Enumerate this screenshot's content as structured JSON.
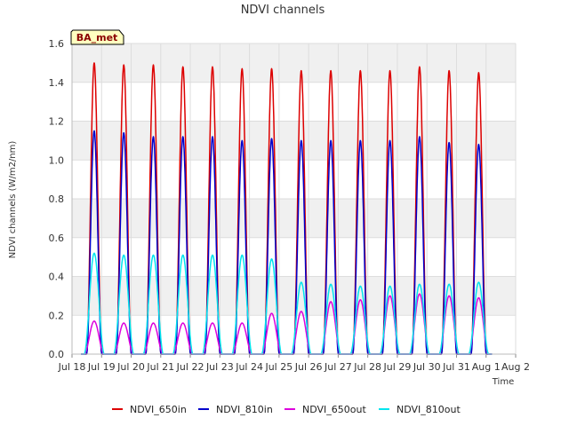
{
  "chart_data": {
    "type": "line",
    "title": "NDVI channels",
    "xlabel": "Time",
    "ylabel": "NDVI channels (W/m2/nm)",
    "badge": "BA_met",
    "ylim": [
      0,
      1.6
    ],
    "yticks": [
      0.0,
      0.2,
      0.4,
      0.6,
      0.8,
      1.0,
      1.2,
      1.4,
      1.6
    ],
    "ytick_labels": [
      "0.0",
      "0.2",
      "0.4",
      "0.6",
      "0.8",
      "1.0",
      "1.2",
      "1.4",
      "1.6"
    ],
    "xlim": [
      0,
      15
    ],
    "xtick_labels": [
      "Jul 18",
      "Jul 19",
      "Jul 20",
      "Jul 21",
      "Jul 22",
      "Jul 23",
      "Jul 24",
      "Jul 25",
      "Jul 26",
      "Jul 27",
      "Jul 28",
      "Jul 29",
      "Jul 30",
      "Jul 31",
      "Aug 1",
      "Aug 2"
    ],
    "data_start_day": 0.3,
    "data_end_day": 14.2,
    "peak_offset": 0.75,
    "series": [
      {
        "name": "NDVI_650in",
        "color": "#dd0000",
        "width": 0.26,
        "peaks": [
          1.5,
          1.49,
          1.49,
          1.48,
          1.48,
          1.47,
          1.47,
          1.46,
          1.46,
          1.46,
          1.46,
          1.48,
          1.46,
          1.45
        ]
      },
      {
        "name": "NDVI_810in",
        "color": "#0000cc",
        "width": 0.26,
        "peaks": [
          1.15,
          1.14,
          1.12,
          1.12,
          1.12,
          1.1,
          1.11,
          1.1,
          1.1,
          1.1,
          1.1,
          1.12,
          1.09,
          1.08
        ]
      },
      {
        "name": "NDVI_650out",
        "color": "#dd00dd",
        "width": 0.34,
        "peaks": [
          0.17,
          0.16,
          0.16,
          0.16,
          0.16,
          0.16,
          0.21,
          0.22,
          0.27,
          0.28,
          0.3,
          0.31,
          0.3,
          0.29
        ]
      },
      {
        "name": "NDVI_810out",
        "color": "#00e5ee",
        "width": 0.34,
        "peaks": [
          0.52,
          0.51,
          0.51,
          0.51,
          0.51,
          0.51,
          0.49,
          0.37,
          0.36,
          0.35,
          0.35,
          0.36,
          0.36,
          0.37
        ]
      }
    ]
  }
}
